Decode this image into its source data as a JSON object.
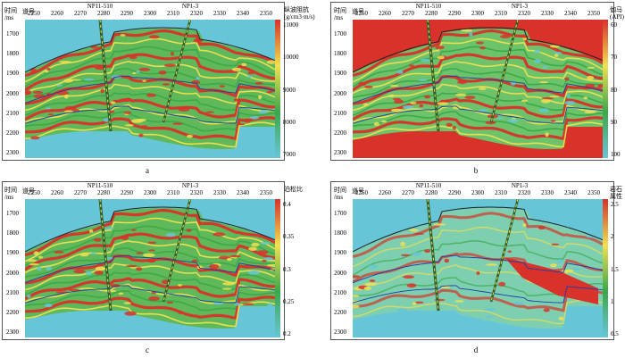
{
  "panels": [
    {
      "letter": "a",
      "ylabel_line1": "时间",
      "ylabel_line2": "/ms",
      "xlabel": "道号",
      "x_ticks": [
        "2250",
        "2260",
        "2270",
        "2280",
        "2290",
        "2300",
        "2310",
        "2320",
        "2330",
        "2340",
        "2350"
      ],
      "y_ticks": [
        "1700",
        "1800",
        "1900",
        "2000",
        "2100",
        "2200",
        "2300"
      ],
      "wells": [
        "NP11-510",
        "NP1-3"
      ],
      "colorbar_title_1": "纵波阻抗",
      "colorbar_title_2": "(g/cm3·m/s)",
      "colorbar_ticks": [
        "11000",
        "10000",
        "9000",
        "8000",
        "7000"
      ],
      "colorbar_stops": [
        "#d8322a",
        "#f0e050",
        "#3aa84a",
        "#66c6d8"
      ],
      "background_color": "#66c6d8"
    },
    {
      "letter": "b",
      "ylabel_line1": "时间",
      "ylabel_line2": "/ms",
      "xlabel": "道号",
      "x_ticks": [
        "2250",
        "2260",
        "2270",
        "2280",
        "2290",
        "2300",
        "2310",
        "2320",
        "2330",
        "2340",
        "2350"
      ],
      "y_ticks": [
        "1700",
        "1800",
        "1900",
        "2000",
        "2100",
        "2200",
        "2300"
      ],
      "wells": [
        "NP11-510",
        "NP1-3"
      ],
      "colorbar_title_1": "伽马",
      "colorbar_title_2": "(API)",
      "colorbar_ticks": [
        "60",
        "70",
        "80",
        "90",
        "100"
      ],
      "colorbar_stops": [
        "#d8322a",
        "#f0e050",
        "#3aa84a",
        "#66c6d8"
      ],
      "background_color": "#d8322a"
    },
    {
      "letter": "c",
      "ylabel_line1": "时间",
      "ylabel_line2": "/ms",
      "xlabel": "道号",
      "x_ticks": [
        "2250",
        "2260",
        "2270",
        "2280",
        "2290",
        "2300",
        "2310",
        "2320",
        "2330",
        "2340",
        "2350"
      ],
      "y_ticks": [
        "1700",
        "1800",
        "1900",
        "2000",
        "2100",
        "2200",
        "2300"
      ],
      "wells": [
        "NP11-510",
        "NP1-3"
      ],
      "colorbar_title_1": "泊松比",
      "colorbar_title_2": "",
      "colorbar_ticks": [
        "0.4",
        "0.35",
        "0.3",
        "0.25",
        "0.2"
      ],
      "colorbar_stops": [
        "#d8322a",
        "#f0e050",
        "#3aa84a",
        "#66c6d8"
      ],
      "background_color": "#66c6d8"
    },
    {
      "letter": "d",
      "ylabel_line1": "时间",
      "ylabel_line2": "/ms",
      "xlabel": "道号",
      "x_ticks": [
        "2250",
        "2260",
        "2270",
        "2280",
        "2290",
        "2300",
        "2310",
        "2320",
        "2330",
        "2340",
        "2350"
      ],
      "y_ticks": [
        "1700",
        "1800",
        "1900",
        "2000",
        "2100",
        "2200",
        "2300"
      ],
      "wells": [
        "NP11-510",
        "NP1-3"
      ],
      "colorbar_title_1": "岩石属性",
      "colorbar_title_2": "",
      "colorbar_ticks": [
        "2.5",
        "2",
        "1.5",
        "1",
        "0.5"
      ],
      "colorbar_stops": [
        "#d8322a",
        "#f0e050",
        "#3aa84a",
        "#66c6d8"
      ],
      "background_color": "#66c6d8"
    }
  ]
}
